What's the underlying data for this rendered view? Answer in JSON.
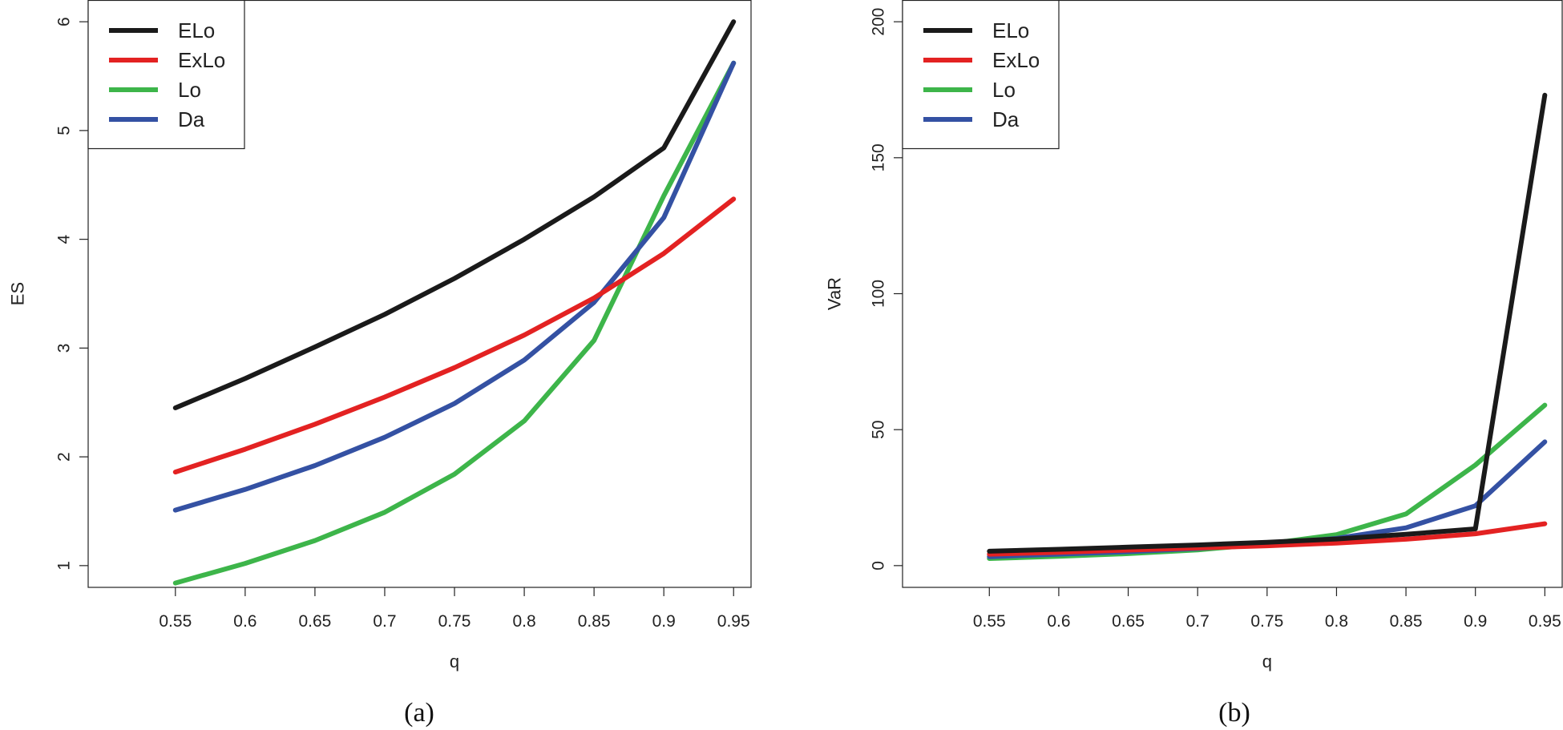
{
  "chart_data": [
    {
      "type": "line",
      "caption": "(a)",
      "xlabel": "q",
      "ylabel": "ES",
      "x": [
        0.55,
        0.6,
        0.65,
        0.7,
        0.75,
        0.8,
        0.85,
        0.9,
        0.95
      ],
      "x_tick_labels": [
        "0.55",
        "0.6",
        "0.65",
        "0.7",
        "0.75",
        "0.8",
        "0.85",
        "0.9",
        "0.95"
      ],
      "xlim": [
        0.4875,
        0.9625
      ],
      "y_ticks": [
        1,
        2,
        3,
        4,
        5,
        6
      ],
      "y_tick_labels": [
        "1",
        "2",
        "3",
        "4",
        "5",
        "6"
      ],
      "ylim": [
        0.8,
        6.2
      ],
      "legend_position": "top-left",
      "series": [
        {
          "name": "ELo",
          "color": "#1a1a1a",
          "values": [
            2.45,
            2.72,
            3.01,
            3.31,
            3.64,
            4.0,
            4.39,
            4.84,
            6.0
          ]
        },
        {
          "name": "ExLo",
          "color": "#e32222",
          "values": [
            1.86,
            2.07,
            2.3,
            2.55,
            2.82,
            3.12,
            3.46,
            3.87,
            4.37
          ]
        },
        {
          "name": "Lo",
          "color": "#3db54a",
          "values": [
            0.84,
            1.02,
            1.23,
            1.49,
            1.84,
            2.33,
            3.07,
            4.4,
            5.62
          ]
        },
        {
          "name": "Da",
          "color": "#3451a3",
          "values": [
            1.51,
            1.7,
            1.92,
            2.18,
            2.49,
            2.89,
            3.42,
            4.2,
            5.62
          ]
        }
      ]
    },
    {
      "type": "line",
      "caption": "(b)",
      "xlabel": "q",
      "ylabel": "VaR",
      "x": [
        0.55,
        0.6,
        0.65,
        0.7,
        0.75,
        0.8,
        0.85,
        0.9,
        0.95
      ],
      "x_tick_labels": [
        "0.55",
        "0.6",
        "0.65",
        "0.7",
        "0.75",
        "0.8",
        "0.85",
        "0.9",
        "0.95"
      ],
      "xlim": [
        0.4875,
        0.9625
      ],
      "y_ticks": [
        0,
        50,
        100,
        150,
        200
      ],
      "y_tick_labels": [
        "0",
        "50",
        "100",
        "150",
        "200"
      ],
      "ylim": [
        -8,
        208
      ],
      "legend_position": "top-left",
      "series": [
        {
          "name": "ELo",
          "color": "#1a1a1a",
          "values": [
            5.3,
            6.0,
            6.8,
            7.6,
            8.6,
            9.8,
            11.5,
            13.5,
            173.0
          ]
        },
        {
          "name": "ExLo",
          "color": "#e32222",
          "values": [
            4.2,
            4.9,
            5.7,
            6.5,
            7.3,
            8.3,
            9.7,
            11.7,
            15.4
          ]
        },
        {
          "name": "Lo",
          "color": "#3db54a",
          "values": [
            2.6,
            3.4,
            4.4,
            5.8,
            8.0,
            11.4,
            19.0,
            37.0,
            59.0
          ]
        },
        {
          "name": "Da",
          "color": "#3451a3",
          "values": [
            3.3,
            4.2,
            5.1,
            6.3,
            7.9,
            10.0,
            13.9,
            22.0,
            45.5
          ]
        }
      ]
    }
  ]
}
